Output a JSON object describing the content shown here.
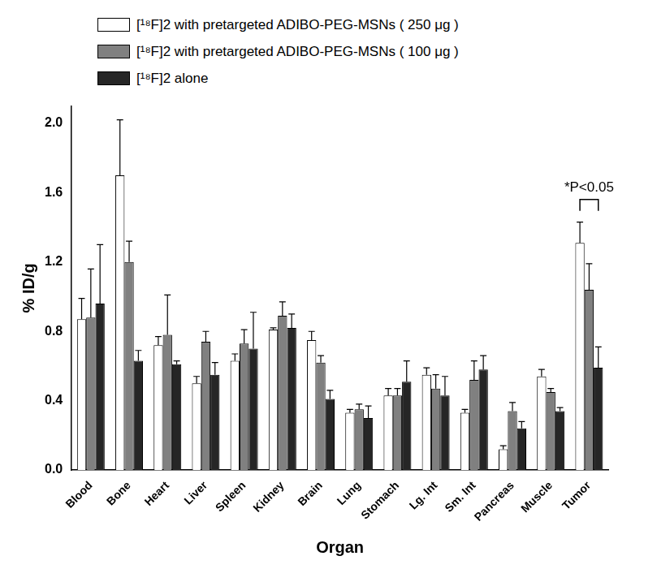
{
  "chart_data": {
    "type": "bar",
    "categories": [
      "Blood",
      "Bone",
      "Heart",
      "Liver",
      "Spleen",
      "Kidney",
      "Brain",
      "Lung",
      "Stomach",
      "Lg. Int",
      "Sm. Int",
      "Pancreas",
      "Muscle",
      "Tumor"
    ],
    "series": [
      {
        "name": "[¹⁸F]2 with pretargeted ADIBO-PEG-MSNs ( 250 μg )",
        "color": "#ffffff",
        "values": [
          0.87,
          1.7,
          0.72,
          0.5,
          0.63,
          0.81,
          0.75,
          0.33,
          0.43,
          0.55,
          0.33,
          0.12,
          0.54,
          1.31
        ],
        "errors": [
          0.12,
          0.32,
          0.05,
          0.04,
          0.04,
          0.01,
          0.05,
          0.02,
          0.04,
          0.04,
          0.02,
          0.02,
          0.04,
          0.12
        ]
      },
      {
        "name": "[¹⁸F]2 with pretargeted ADIBO-PEG-MSNs ( 100 μg )",
        "color": "#808080",
        "values": [
          0.88,
          1.2,
          0.78,
          0.74,
          0.73,
          0.89,
          0.62,
          0.35,
          0.43,
          0.47,
          0.52,
          0.34,
          0.45,
          1.04
        ],
        "errors": [
          0.28,
          0.12,
          0.23,
          0.06,
          0.08,
          0.08,
          0.04,
          0.03,
          0.04,
          0.08,
          0.11,
          0.05,
          0.02,
          0.15
        ]
      },
      {
        "name": "[¹⁸F]2 alone",
        "color": "#262626",
        "values": [
          0.96,
          0.63,
          0.61,
          0.55,
          0.7,
          0.82,
          0.41,
          0.3,
          0.51,
          0.43,
          0.58,
          0.24,
          0.34,
          0.59
        ],
        "errors": [
          0.34,
          0.06,
          0.02,
          0.07,
          0.21,
          0.08,
          0.05,
          0.07,
          0.12,
          0.11,
          0.08,
          0.04,
          0.02,
          0.12
        ]
      }
    ],
    "x_label": "Organ",
    "y_label": "% ID/g",
    "ylim": [
      0,
      2.1
    ],
    "yticks": [
      {
        "value": 0,
        "label": "0.0"
      },
      0.4,
      0.8,
      1.2,
      1.6,
      {
        "value": 2,
        "label": "2.0"
      }
    ],
    "grid": false,
    "legend": "top",
    "annotation": "*P<0.05"
  }
}
